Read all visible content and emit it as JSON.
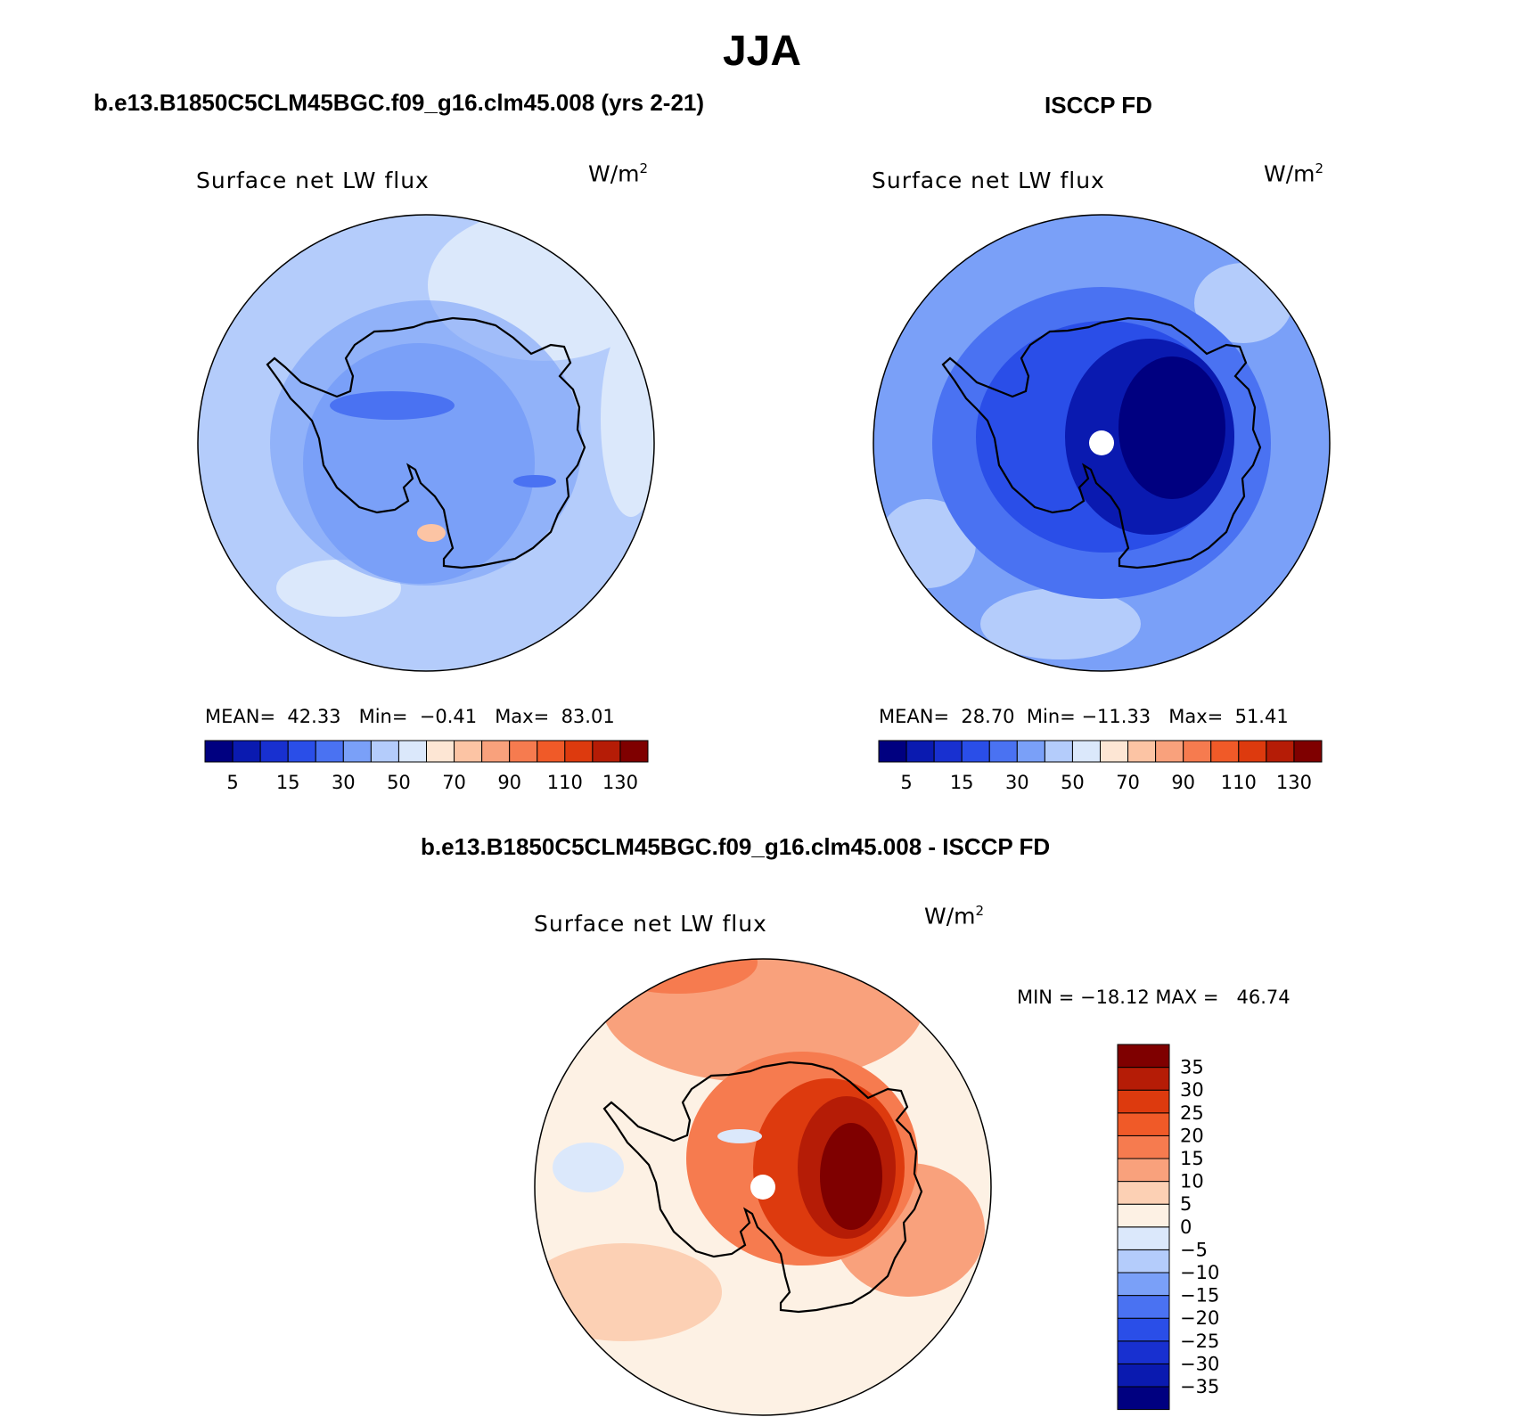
{
  "figure": {
    "main_title": "JJA",
    "colors": {
      "ocean_model": "#b4ccfb",
      "land_outline": "#000000",
      "pole_marker": "#ffffff"
    }
  },
  "panels": [
    {
      "id": "model",
      "title": "b.e13.B1850C5CLM45BGC.f09_g16.clm45.008 (yrs 2-21)",
      "variable": "Surface net LW flux",
      "units_base": "W/m",
      "units_exp": "2",
      "stats": [
        {
          "label": "MEAN=",
          "value": "42.33"
        },
        {
          "label": "Min=",
          "value": "−0.41"
        },
        {
          "label": "Max=",
          "value": "83.01"
        }
      ]
    },
    {
      "id": "obs",
      "title": "ISCCP FD",
      "variable": "Surface net LW flux",
      "units_base": "W/m",
      "units_exp": "2",
      "stats": [
        {
          "label": "MEAN=",
          "value": "28.70"
        },
        {
          "label": "Min=",
          "value": "−11.33"
        },
        {
          "label": "Max=",
          "value": "51.41"
        }
      ]
    },
    {
      "id": "diff",
      "title": "b.e13.B1850C5CLM45BGC.f09_g16.clm45.008 - ISCCP FD",
      "variable": "Surface net LW flux",
      "units_base": "W/m",
      "units_exp": "2",
      "minmax_text": "MIN = −18.12 MAX =   46.74"
    }
  ],
  "colorbar_abs": {
    "colors": [
      "#000080",
      "#0a1ab0",
      "#1830d0",
      "#2a4ee8",
      "#4a72f2",
      "#7aa0f8",
      "#b4ccfb",
      "#dbe8fb",
      "#fde6d4",
      "#fcc4a4",
      "#f9a17c",
      "#f67b4f",
      "#f05a28",
      "#dd3a0e",
      "#b51c06",
      "#7f0000"
    ],
    "tick_labels": [
      "5",
      "15",
      "30",
      "50",
      "70",
      "90",
      "110",
      "130"
    ],
    "tick_after_box": [
      0,
      2,
      4,
      6,
      8,
      10,
      12,
      14
    ]
  },
  "colorbar_diff": {
    "colors_bottom_to_top": [
      "#000080",
      "#0a1ab0",
      "#1830d0",
      "#2a4ee8",
      "#4a72f2",
      "#7aa0f8",
      "#b4ccfb",
      "#dbe8fb",
      "#fdf1e4",
      "#fcd0b4",
      "#f9a17c",
      "#f67b4f",
      "#f05a28",
      "#dd3a0e",
      "#b51c06",
      "#7f0000"
    ],
    "tick_labels_top_to_bottom": [
      "35",
      "30",
      "25",
      "20",
      "15",
      "10",
      "5",
      "0",
      "−5",
      "−10",
      "−15",
      "−20",
      "−25",
      "−30",
      "−35"
    ]
  }
}
